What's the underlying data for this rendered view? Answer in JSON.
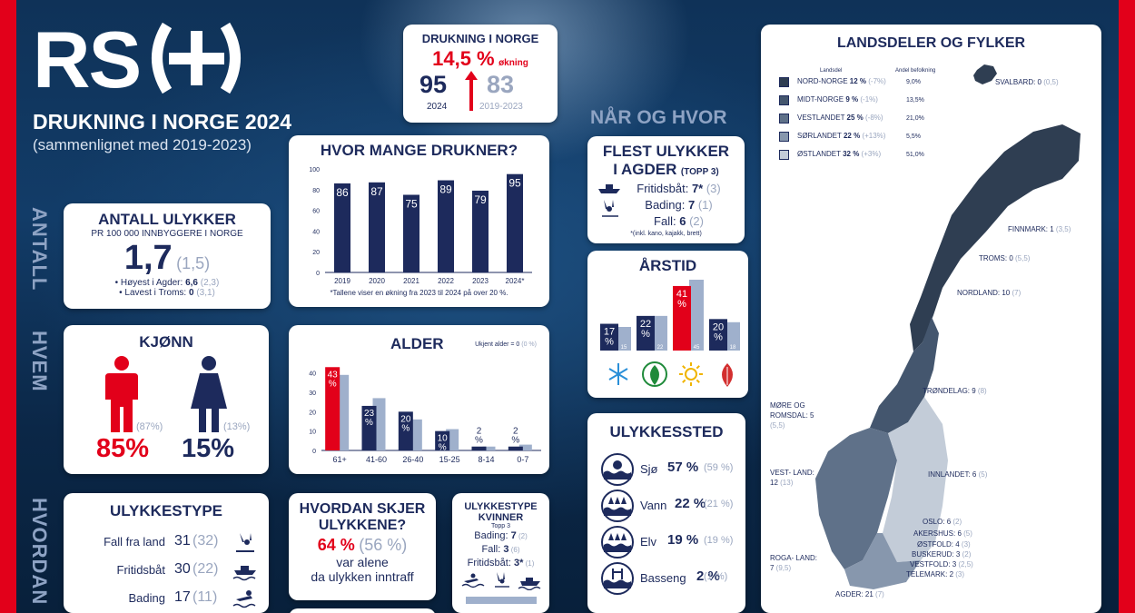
{
  "brand": {
    "logo": "RS(+)",
    "title": "DRUKNING I NORGE 2024",
    "subtitle": "(sammenlignet med 2019-2023)"
  },
  "side_labels": {
    "antall": "ANTALL",
    "hvem": "HVEM",
    "hvordan": "HVORDAN",
    "nar": "NÅR OG HVOR"
  },
  "summary": {
    "title": "DRUKNING I NORGE",
    "pct": "14,5 %",
    "pct_label": "økning",
    "v2024": "95",
    "y2024": "2024",
    "v_base": "83",
    "y_base": "2019-2023"
  },
  "ulykker": {
    "title": "ANTALL ULYKKER",
    "subtitle": "PR 100 000 INNBYGGERE I NORGE",
    "value": "1,7",
    "prev": "(1,5)",
    "hoyest_label": "• Høyest i Agder:",
    "hoyest": "6,6",
    "hoyest_prev": "(2,3)",
    "lavest_label": "• Lavest i Troms:",
    "lavest": "0",
    "lavest_prev": "(3,1)"
  },
  "hvor_mange": {
    "title": "HVOR MANGE DRUKNER?",
    "note": "*Tallene viser en økning fra 2023 til 2024 på over 20 %."
  },
  "chart_data": [
    {
      "type": "bar",
      "title": "HVOR MANGE DRUKNER?",
      "categories": [
        "2019",
        "2020",
        "2021",
        "2022",
        "2023",
        "2024*"
      ],
      "values": [
        86,
        87,
        75,
        89,
        79,
        95
      ],
      "ylim": [
        0,
        100
      ],
      "yticks": [
        0,
        20,
        40,
        60,
        80,
        100
      ]
    },
    {
      "type": "bar",
      "title": "ALDER",
      "categories": [
        "61+",
        "41-60",
        "26-40",
        "15-25",
        "8-14",
        "0-7"
      ],
      "series": [
        {
          "values": [
            43,
            23,
            20,
            10,
            2,
            2
          ]
        },
        {
          "values": [
            39,
            27,
            16,
            11,
            2,
            3
          ]
        }
      ],
      "data_labels": [
        "43 %",
        "23 %",
        "20 %",
        "10 %",
        "2 %",
        "2 %"
      ],
      "ylim": [
        0,
        45
      ],
      "yticks": [
        0,
        10,
        20,
        30,
        40
      ]
    },
    {
      "type": "bar",
      "title": "ÅRSTID",
      "categories": [
        "vinter",
        "vår",
        "sommer",
        "høst"
      ],
      "series": [
        {
          "values": [
            17,
            22,
            41,
            20
          ]
        },
        {
          "values": [
            15,
            22,
            45,
            18
          ]
        }
      ],
      "data_labels": [
        "17 %",
        "22 %",
        "41 %",
        "20 %"
      ]
    }
  ],
  "alder": {
    "title": "ALDER",
    "note": "Ukjent alder = 0",
    "note_prev": "(0 %)"
  },
  "kjonn": {
    "title": "KJØNN",
    "male": "85%",
    "male_prev": "(87%)",
    "female": "15%",
    "female_prev": "(13%)"
  },
  "agder": {
    "title": "FLEST ULYKKER",
    "title2": "I AGDER",
    "topp": "(TOPP 3)",
    "items": [
      {
        "label": "Fritidsbåt:",
        "val": "7*",
        "prev": "(3)"
      },
      {
        "label": "Bading:",
        "val": "7",
        "prev": "(1)"
      },
      {
        "label": "Fall:",
        "val": "6",
        "prev": "(2)"
      }
    ],
    "note": "*(inkl. kano, kajakk, brett)"
  },
  "arstid": {
    "title": "ÅRSTID"
  },
  "sted": {
    "title": "ULYKKESSTED",
    "items": [
      {
        "label": "Sjø",
        "val": "57 %",
        "prev": "(59 %)"
      },
      {
        "label": "Vann",
        "val": "22 %",
        "prev": "(21 %)"
      },
      {
        "label": "Elv",
        "val": "19 %",
        "prev": "(19 %)"
      },
      {
        "label": "Basseng",
        "val": "2 %",
        "prev": "(1 %)"
      }
    ]
  },
  "ulykkestype": {
    "title": "ULYKKESTYPE",
    "items": [
      {
        "label": "Fall fra land",
        "val": "31",
        "prev": "(32)"
      },
      {
        "label": "Fritidsbåt",
        "val": "30",
        "prev": "(22)"
      },
      {
        "label": "Bading",
        "val": "17",
        "prev": "(11)"
      }
    ]
  },
  "hvordan": {
    "title": "HVORDAN SKJER",
    "title2": "ULYKKENE?",
    "val": "64 %",
    "prev": "(56 %)",
    "line1": "var alene",
    "line2": "da ulykken inntraff"
  },
  "kvinner": {
    "title": "ULYKKESTYPE",
    "title2": "KVINNER",
    "topp": "Topp 3",
    "items": [
      {
        "label": "Bading:",
        "val": "7",
        "prev": "(2)"
      },
      {
        "label": "Fall:",
        "val": "3",
        "prev": "(6)"
      },
      {
        "label": "Fritidsbåt:",
        "val": "3*",
        "prev": "(1)"
      }
    ]
  },
  "map": {
    "title": "LANDSDELER OG FYLKER",
    "col_landsdel": "Landsdel",
    "col_andel": "Andel befolkning",
    "legend": [
      {
        "name": "NORD-NORGE",
        "val": "12 %",
        "chg": "(-7%)",
        "pop": "9,0%",
        "color": "#2f3e52"
      },
      {
        "name": "MIDT-NORGE",
        "val": "9 %",
        "chg": "(-1%)",
        "pop": "13,5%",
        "color": "#44566e"
      },
      {
        "name": "VESTLANDET",
        "val": "25 %",
        "chg": "(-8%)",
        "pop": "21,0%",
        "color": "#5f7189"
      },
      {
        "name": "SØRLANDET",
        "val": "22 %",
        "chg": "(+13%)",
        "pop": "5,5%",
        "color": "#8797ad"
      },
      {
        "name": "ØSTLANDET",
        "val": "32 %",
        "chg": "(+3%)",
        "pop": "51,0%",
        "color": "#c3ccd8"
      }
    ],
    "labels": [
      {
        "name": "SVALBARD:",
        "val": "0",
        "prev": "(0,5)"
      },
      {
        "name": "FINNMARK:",
        "val": "1",
        "prev": "(3,5)"
      },
      {
        "name": "TROMS:",
        "val": "0",
        "prev": "(5,5)"
      },
      {
        "name": "NORDLAND:",
        "val": "10",
        "prev": "(7)"
      },
      {
        "name": "TRØNDELAG:",
        "val": "9",
        "prev": "(8)"
      },
      {
        "name": "MØRE OG ROMSDAL:",
        "val": "5",
        "prev": "(5,5)"
      },
      {
        "name": "VEST- LAND:",
        "val": "12",
        "prev": "(13)"
      },
      {
        "name": "INNLANDET:",
        "val": "6",
        "prev": "(5)"
      },
      {
        "name": "OSLO:",
        "val": "6",
        "prev": "(2)"
      },
      {
        "name": "AKERSHUS:",
        "val": "6",
        "prev": "(5)"
      },
      {
        "name": "ØSTFOLD:",
        "val": "4",
        "prev": "(3)"
      },
      {
        "name": "BUSKERUD:",
        "val": "3",
        "prev": "(2)"
      },
      {
        "name": "VESTFOLD:",
        "val": "3",
        "prev": "(2,5)"
      },
      {
        "name": "TELEMARK:",
        "val": "2",
        "prev": "(3)"
      },
      {
        "name": "ROGA- LAND:",
        "val": "7",
        "prev": "(9,5)"
      },
      {
        "name": "AGDER:",
        "val": "21",
        "prev": "(7)"
      }
    ]
  },
  "colors": {
    "red": "#e2001a",
    "navy": "#1d2a5c",
    "light": "#9fb0cc"
  }
}
